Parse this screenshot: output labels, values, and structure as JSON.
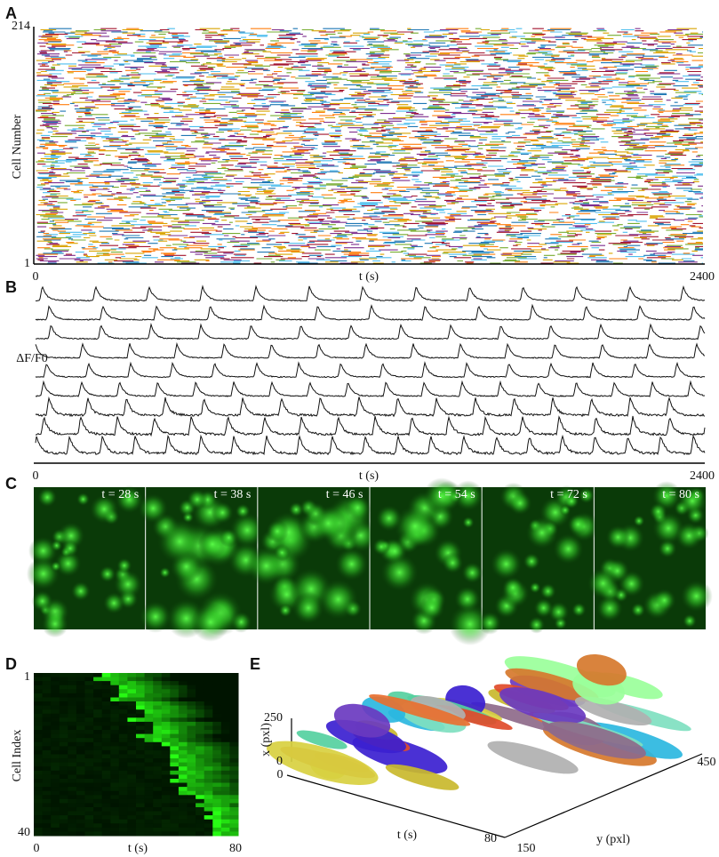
{
  "panels": [
    {
      "label": "A",
      "y_label": "Cell Number",
      "y_ticks": [
        214,
        1
      ],
      "x_ticks": [
        0,
        2400
      ],
      "x_label": "t (s)"
    },
    {
      "label": "B",
      "y_label": "ΔF/F0",
      "x_ticks": [
        0,
        2400
      ],
      "x_label": "t (s)"
    },
    {
      "label": "C",
      "frames": [
        "t = 28 s",
        "t = 38 s",
        "t = 46 s",
        "t = 54 s",
        "t = 72 s",
        "t = 80 s"
      ]
    },
    {
      "label": "D",
      "y_label": "Cell Index",
      "y_ticks": [
        1,
        40
      ],
      "x_ticks": [
        0,
        80
      ],
      "x_label": "t (s)"
    },
    {
      "label": "E",
      "x_label": "x (pxl)",
      "x_ticks": [
        250,
        0
      ],
      "t_label": "t (s)",
      "t_ticks": [
        0,
        80
      ],
      "y_label": "y (pxl)",
      "y_ticks": [
        150,
        450
      ]
    }
  ]
}
